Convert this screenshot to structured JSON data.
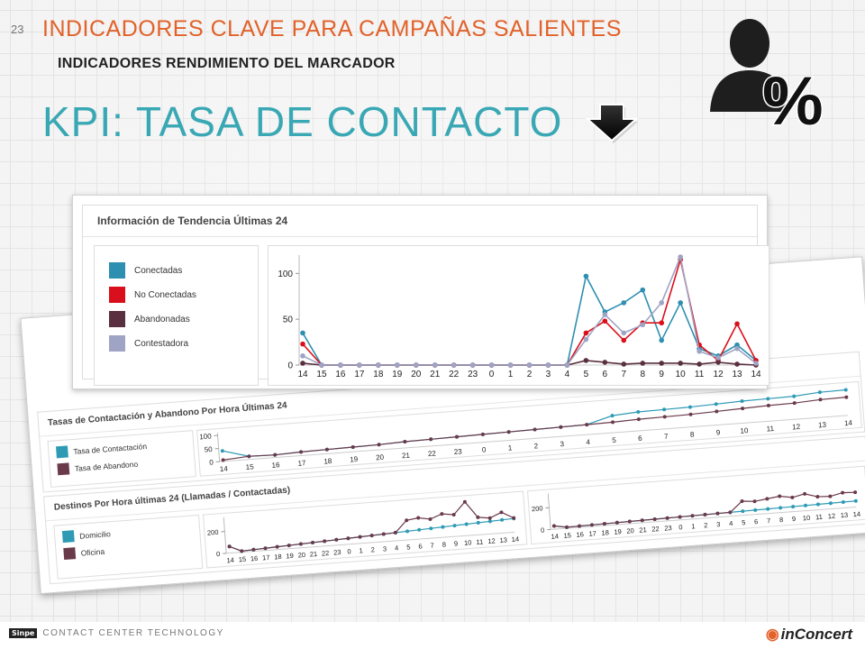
{
  "slide": {
    "page_number": "23",
    "main_title": "INDICADORES CLAVE PARA CAMPAÑAS SALIENTES",
    "sub_title": "INDICADORES RENDIMIENTO DEL MARCADOR",
    "kpi_title": "KPI: TASA DE CONTACTO",
    "percent_symbol": "%"
  },
  "top_panel": {
    "header": "Información de Tendencia Últimas 24",
    "legend": [
      {
        "label": "Conectadas",
        "color": "#2e8fb0"
      },
      {
        "label": "No Conectadas",
        "color": "#d9101c"
      },
      {
        "label": "Abandonadas",
        "color": "#5a3040"
      },
      {
        "label": "Contestadora",
        "color": "#a0a4c4"
      }
    ]
  },
  "back_panel": {
    "section1": {
      "header": "Tasas de Contactación y Abandono Por Hora Últimas 24",
      "legend": [
        {
          "label": "Tasa de Contactación",
          "color": "#2e9ab4"
        },
        {
          "label": "Tasa de Abandono",
          "color": "#6a3a4a"
        }
      ]
    },
    "section2": {
      "header": "Destinos Por Hora últimas 24 (Llamadas / Contactadas)",
      "legend": [
        {
          "label": "Domicilio",
          "color": "#2e9ab4"
        },
        {
          "label": "Oficina",
          "color": "#6a3a4a"
        }
      ]
    }
  },
  "footer": {
    "sinpe_logo": "Sinpe",
    "left_text": "CONTACT CENTER TECHNOLOGY",
    "brand": "inConcert"
  },
  "chart_data": [
    {
      "type": "line",
      "x": [
        "14",
        "15",
        "16",
        "17",
        "18",
        "19",
        "20",
        "21",
        "22",
        "23",
        "0",
        "1",
        "2",
        "3",
        "4",
        "5",
        "6",
        "7",
        "8",
        "9",
        "10",
        "11",
        "12",
        "13",
        "14"
      ],
      "yticks": [
        0,
        50,
        100
      ],
      "ylim": [
        0,
        120
      ],
      "series": [
        {
          "name": "Conectadas",
          "color": "#2e8fb0",
          "values": [
            35,
            0,
            0,
            0,
            0,
            0,
            0,
            0,
            0,
            0,
            0,
            0,
            0,
            0,
            0,
            97,
            58,
            68,
            82,
            27,
            68,
            18,
            10,
            22,
            5
          ]
        },
        {
          "name": "No Conectadas",
          "color": "#d9101c",
          "values": [
            23,
            0,
            0,
            0,
            0,
            0,
            0,
            0,
            0,
            0,
            0,
            0,
            0,
            0,
            0,
            35,
            48,
            27,
            46,
            46,
            115,
            22,
            5,
            45,
            5
          ]
        },
        {
          "name": "Abandonadas",
          "color": "#5a3040",
          "values": [
            2,
            0,
            0,
            0,
            0,
            0,
            0,
            0,
            0,
            0,
            0,
            0,
            0,
            0,
            0,
            5,
            3,
            1,
            2,
            2,
            2,
            1,
            3,
            1,
            0
          ]
        },
        {
          "name": "Contestadora",
          "color": "#a0a4c4",
          "values": [
            10,
            0,
            0,
            0,
            0,
            0,
            0,
            0,
            0,
            0,
            0,
            0,
            0,
            0,
            0,
            28,
            55,
            35,
            44,
            68,
            118,
            15,
            8,
            18,
            2
          ]
        }
      ]
    },
    {
      "type": "line",
      "x": [
        "14",
        "15",
        "16",
        "17",
        "18",
        "19",
        "20",
        "21",
        "22",
        "23",
        "0",
        "1",
        "2",
        "3",
        "4",
        "5",
        "6",
        "7",
        "8",
        "9",
        "10",
        "11",
        "12",
        "13",
        "14"
      ],
      "yticks": [
        0,
        50,
        100
      ],
      "ylim": [
        0,
        110
      ],
      "series": [
        {
          "name": "Tasa de Contactación",
          "color": "#2e9ab4",
          "values": [
            40,
            12,
            10,
            14,
            16,
            18,
            20,
            24,
            26,
            28,
            30,
            32,
            34,
            36,
            38,
            65,
            72,
            74,
            76,
            80,
            84,
            86,
            88,
            96,
            98
          ]
        },
        {
          "name": "Tasa de Abandono",
          "color": "#6a3a4a",
          "values": [
            5,
            12,
            10,
            14,
            16,
            18,
            20,
            24,
            26,
            28,
            30,
            32,
            34,
            36,
            38,
            40,
            44,
            46,
            48,
            52,
            56,
            60,
            62,
            68,
            70
          ]
        }
      ]
    },
    {
      "type": "line",
      "x": [
        "14",
        "15",
        "16",
        "17",
        "18",
        "19",
        "20",
        "21",
        "22",
        "23",
        "0",
        "1",
        "2",
        "3",
        "4",
        "5",
        "6",
        "7",
        "8",
        "9",
        "10",
        "11",
        "12",
        "13",
        "14"
      ],
      "yticks": [
        0,
        200
      ],
      "ylim": [
        0,
        330
      ],
      "series": [
        {
          "name": "Domicilio",
          "color": "#2e9ab4",
          "values": [
            60,
            10,
            15,
            20,
            25,
            30,
            35,
            40,
            45,
            50,
            55,
            60,
            65,
            70,
            75,
            80,
            85,
            90,
            95,
            100,
            105,
            110,
            115,
            120,
            125
          ]
        },
        {
          "name": "Oficina",
          "color": "#6a3a4a",
          "values": [
            60,
            10,
            15,
            20,
            25,
            30,
            35,
            40,
            45,
            50,
            55,
            60,
            65,
            70,
            75,
            180,
            195,
            175,
            215,
            200,
            310,
            160,
            145,
            190,
            130
          ]
        }
      ]
    },
    {
      "type": "line",
      "x": [
        "14",
        "15",
        "16",
        "17",
        "18",
        "19",
        "20",
        "21",
        "22",
        "23",
        "0",
        "1",
        "2",
        "3",
        "4",
        "5",
        "6",
        "7",
        "8",
        "9",
        "10",
        "11",
        "12",
        "13",
        "14"
      ],
      "yticks": [
        0,
        200
      ],
      "ylim": [
        0,
        330
      ],
      "series": [
        {
          "name": "Domicilio",
          "color": "#2e9ab4",
          "values": [
            30,
            10,
            12,
            14,
            16,
            18,
            20,
            22,
            24,
            26,
            28,
            30,
            32,
            34,
            36,
            38,
            40,
            42,
            44,
            46,
            48,
            50,
            52,
            54,
            56
          ]
        },
        {
          "name": "Oficina",
          "color": "#6a3a4a",
          "values": [
            30,
            10,
            12,
            14,
            16,
            18,
            20,
            22,
            24,
            26,
            28,
            30,
            32,
            34,
            36,
            130,
            120,
            135,
            150,
            130,
            155,
            120,
            115,
            140,
            135
          ]
        }
      ]
    }
  ]
}
